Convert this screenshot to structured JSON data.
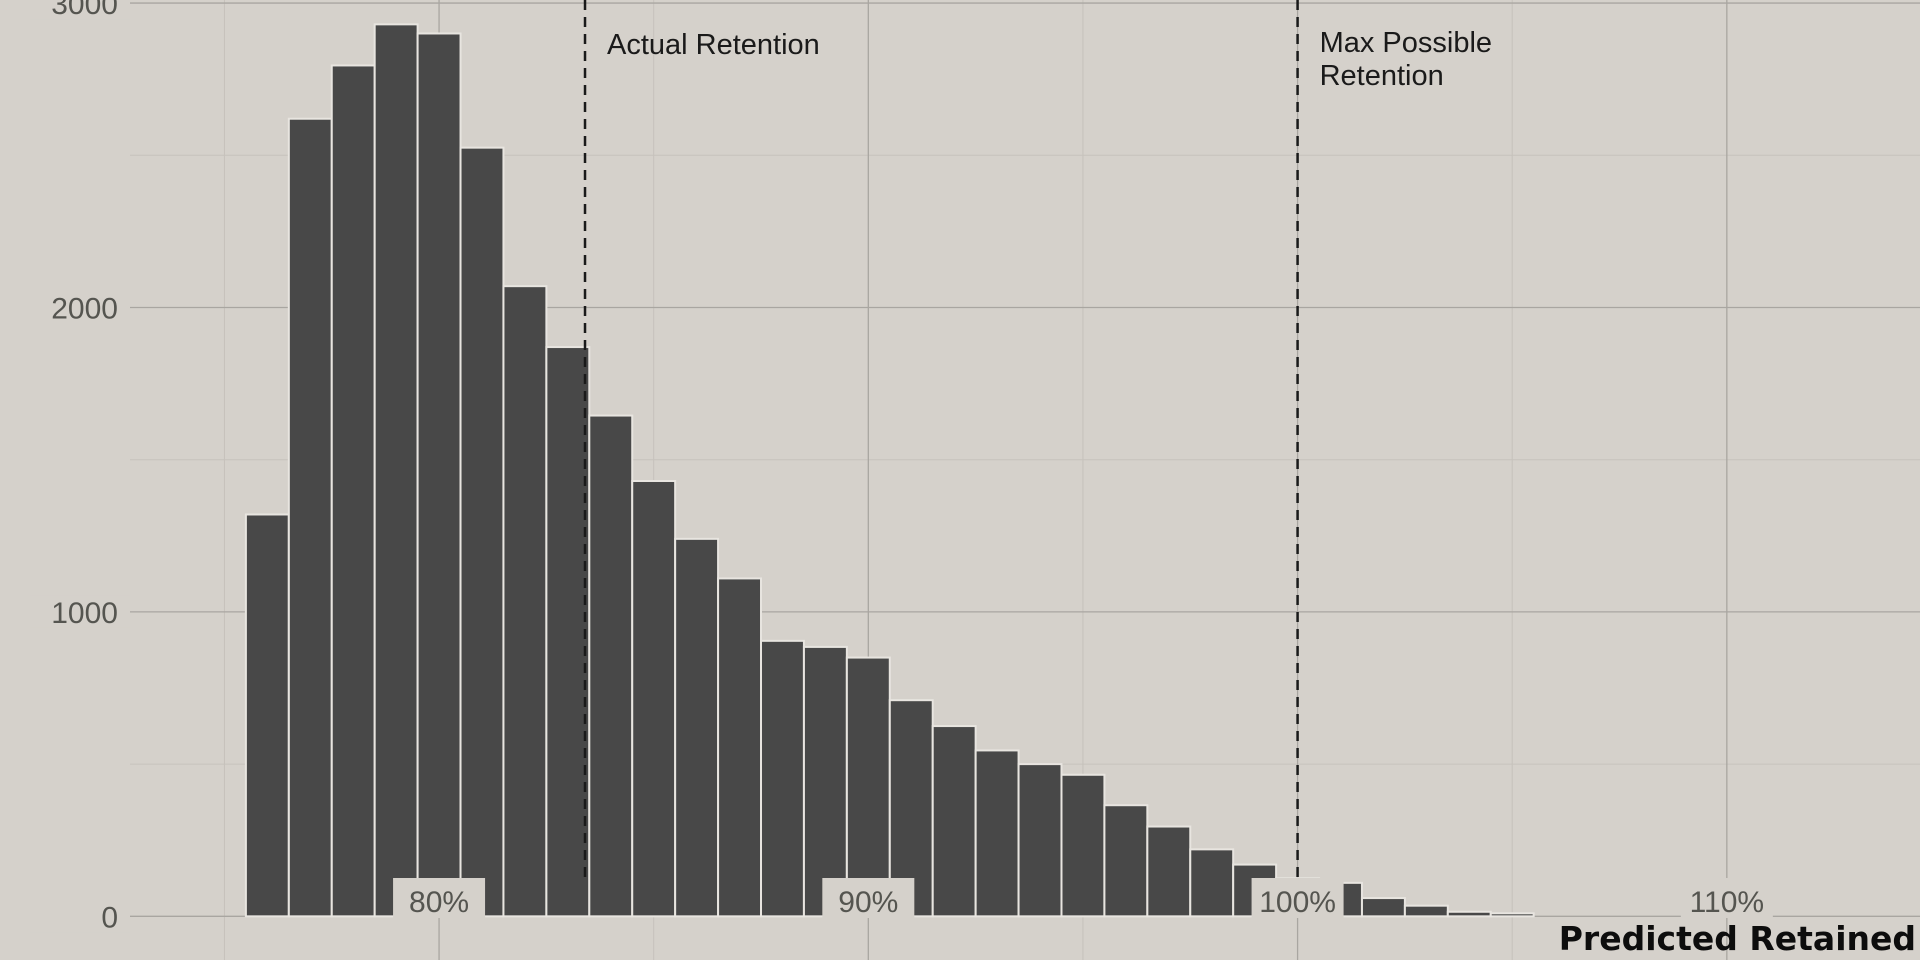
{
  "chart_data": {
    "type": "bar",
    "title": "",
    "xlabel": "Predicted Retained",
    "ylabel": "",
    "xlim": [
      72.8,
      114.5
    ],
    "ylim": [
      -150,
      3010
    ],
    "x_ticks": [
      80,
      90,
      100,
      110
    ],
    "x_tick_labels": [
      "80%",
      "90%",
      "100%",
      "110%"
    ],
    "y_ticks": [
      0,
      1000,
      2000,
      3000
    ],
    "y_tick_labels": [
      "0",
      "1000",
      "2000",
      "3000"
    ],
    "grid": true,
    "bin_width": 1,
    "bins": [
      {
        "x": 76.0,
        "value": 1320
      },
      {
        "x": 77.0,
        "value": 2620
      },
      {
        "x": 78.0,
        "value": 2795
      },
      {
        "x": 79.0,
        "value": 2930
      },
      {
        "x": 80.0,
        "value": 2900
      },
      {
        "x": 81.0,
        "value": 2525
      },
      {
        "x": 82.0,
        "value": 2070
      },
      {
        "x": 83.0,
        "value": 1870
      },
      {
        "x": 84.0,
        "value": 1645
      },
      {
        "x": 85.0,
        "value": 1430
      },
      {
        "x": 86.0,
        "value": 1240
      },
      {
        "x": 87.0,
        "value": 1110
      },
      {
        "x": 88.0,
        "value": 905
      },
      {
        "x": 89.0,
        "value": 885
      },
      {
        "x": 90.0,
        "value": 850
      },
      {
        "x": 91.0,
        "value": 710
      },
      {
        "x": 92.0,
        "value": 625
      },
      {
        "x": 93.0,
        "value": 545
      },
      {
        "x": 94.0,
        "value": 500
      },
      {
        "x": 95.0,
        "value": 465
      },
      {
        "x": 96.0,
        "value": 365
      },
      {
        "x": 97.0,
        "value": 295
      },
      {
        "x": 98.0,
        "value": 220
      },
      {
        "x": 99.0,
        "value": 170
      },
      {
        "x": 100.0,
        "value": 125
      },
      {
        "x": 101.0,
        "value": 110
      },
      {
        "x": 102.0,
        "value": 60
      },
      {
        "x": 103.0,
        "value": 35
      },
      {
        "x": 104.0,
        "value": 15
      },
      {
        "x": 105.0,
        "value": 10
      }
    ],
    "reference_lines": [
      {
        "x": 83.4,
        "label_lines": [
          "Actual Retention"
        ]
      },
      {
        "x": 100.0,
        "label_lines": [
          "Max Possible",
          "Retention"
        ]
      }
    ],
    "colors": {
      "background": "#d5d1cb",
      "bar_fill": "#484848",
      "bar_stroke": "#e8e5e0",
      "grid_major": "#a9a6a1",
      "grid_minor": "#c6c2bc",
      "reference_line": "#1a1a1a"
    }
  }
}
